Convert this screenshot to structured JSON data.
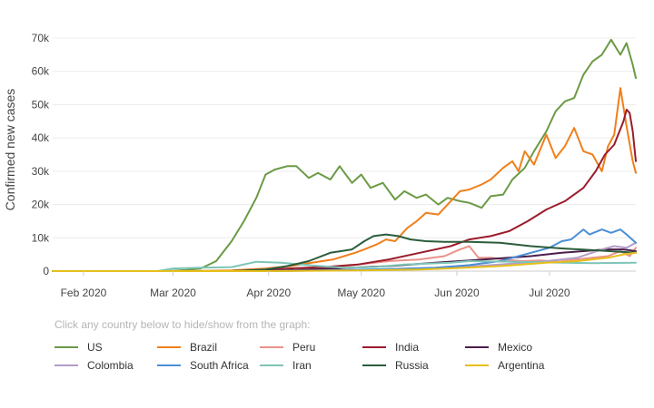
{
  "hint_text": "Click any country below to hide/show from the graph:",
  "chart_data": {
    "type": "line",
    "title": "",
    "ylabel": "Confirmed new cases",
    "xlabel": "",
    "ylim": [
      0,
      70000
    ],
    "yticks": [
      0,
      10000,
      20000,
      30000,
      40000,
      50000,
      60000,
      70000
    ],
    "ytick_labels": [
      "0",
      "10k",
      "20k",
      "30k",
      "40k",
      "50k",
      "60k",
      "70k"
    ],
    "xlim": [
      "2020-01-22",
      "2020-07-29"
    ],
    "xticks": [
      "2020-02-01",
      "2020-03-01",
      "2020-04-01",
      "2020-05-01",
      "2020-06-01",
      "2020-07-01"
    ],
    "xtick_labels": [
      "Feb 2020",
      "Mar 2020",
      "Apr 2020",
      "May 2020",
      "Jun 2020",
      "Jul 2020"
    ],
    "grid": "horizontal",
    "legend_position": "bottom",
    "series": [
      {
        "name": "US",
        "color": "#6b9a45",
        "points": [
          [
            "2020-01-22",
            0
          ],
          [
            "2020-02-28",
            0
          ],
          [
            "2020-03-05",
            300
          ],
          [
            "2020-03-10",
            800
          ],
          [
            "2020-03-15",
            3000
          ],
          [
            "2020-03-20",
            9000
          ],
          [
            "2020-03-24",
            15000
          ],
          [
            "2020-03-28",
            22000
          ],
          [
            "2020-03-31",
            29000
          ],
          [
            "2020-04-03",
            30500
          ],
          [
            "2020-04-07",
            31500
          ],
          [
            "2020-04-10",
            31500
          ],
          [
            "2020-04-14",
            28000
          ],
          [
            "2020-04-17",
            29500
          ],
          [
            "2020-04-21",
            27500
          ],
          [
            "2020-04-24",
            31500
          ],
          [
            "2020-04-28",
            26500
          ],
          [
            "2020-05-01",
            29000
          ],
          [
            "2020-05-04",
            25000
          ],
          [
            "2020-05-08",
            26500
          ],
          [
            "2020-05-12",
            21500
          ],
          [
            "2020-05-15",
            24000
          ],
          [
            "2020-05-19",
            22000
          ],
          [
            "2020-05-22",
            23000
          ],
          [
            "2020-05-26",
            20000
          ],
          [
            "2020-05-29",
            22000
          ],
          [
            "2020-06-02",
            21000
          ],
          [
            "2020-06-05",
            20500
          ],
          [
            "2020-06-09",
            19000
          ],
          [
            "2020-06-12",
            22500
          ],
          [
            "2020-06-16",
            23000
          ],
          [
            "2020-06-19",
            27500
          ],
          [
            "2020-06-23",
            31000
          ],
          [
            "2020-06-26",
            36000
          ],
          [
            "2020-06-30",
            42000
          ],
          [
            "2020-07-03",
            48000
          ],
          [
            "2020-07-06",
            51000
          ],
          [
            "2020-07-09",
            52000
          ],
          [
            "2020-07-12",
            59000
          ],
          [
            "2020-07-15",
            63000
          ],
          [
            "2020-07-18",
            65000
          ],
          [
            "2020-07-21",
            69500
          ],
          [
            "2020-07-24",
            65000
          ],
          [
            "2020-07-26",
            68500
          ],
          [
            "2020-07-28",
            62000
          ],
          [
            "2020-07-29",
            58000
          ]
        ]
      },
      {
        "name": "Brazil",
        "color": "#f07f1b",
        "points": [
          [
            "2020-01-22",
            0
          ],
          [
            "2020-03-05",
            0
          ],
          [
            "2020-03-20",
            200
          ],
          [
            "2020-03-31",
            800
          ],
          [
            "2020-04-08",
            1500
          ],
          [
            "2020-04-15",
            2500
          ],
          [
            "2020-04-22",
            3500
          ],
          [
            "2020-04-29",
            5500
          ],
          [
            "2020-05-02",
            6500
          ],
          [
            "2020-05-06",
            8000
          ],
          [
            "2020-05-09",
            9500
          ],
          [
            "2020-05-12",
            9000
          ],
          [
            "2020-05-16",
            13000
          ],
          [
            "2020-05-19",
            15000
          ],
          [
            "2020-05-22",
            17500
          ],
          [
            "2020-05-26",
            17000
          ],
          [
            "2020-05-29",
            20000
          ],
          [
            "2020-06-02",
            24000
          ],
          [
            "2020-06-05",
            24500
          ],
          [
            "2020-06-09",
            26000
          ],
          [
            "2020-06-12",
            27500
          ],
          [
            "2020-06-16",
            31000
          ],
          [
            "2020-06-19",
            33000
          ],
          [
            "2020-06-21",
            30000
          ],
          [
            "2020-06-23",
            36000
          ],
          [
            "2020-06-26",
            32000
          ],
          [
            "2020-06-30",
            41000
          ],
          [
            "2020-07-03",
            34000
          ],
          [
            "2020-07-06",
            37500
          ],
          [
            "2020-07-09",
            43000
          ],
          [
            "2020-07-12",
            36000
          ],
          [
            "2020-07-15",
            35000
          ],
          [
            "2020-07-18",
            30000
          ],
          [
            "2020-07-20",
            37500
          ],
          [
            "2020-07-22",
            41000
          ],
          [
            "2020-07-24",
            55000
          ],
          [
            "2020-07-26",
            43500
          ],
          [
            "2020-07-28",
            33000
          ],
          [
            "2020-07-29",
            29500
          ]
        ]
      },
      {
        "name": "Peru",
        "color": "#e8938a",
        "points": [
          [
            "2020-01-22",
            0
          ],
          [
            "2020-03-31",
            0
          ],
          [
            "2020-04-10",
            300
          ],
          [
            "2020-04-20",
            800
          ],
          [
            "2020-04-30",
            2000
          ],
          [
            "2020-05-10",
            3000
          ],
          [
            "2020-05-20",
            3500
          ],
          [
            "2020-05-28",
            4500
          ],
          [
            "2020-06-02",
            6500
          ],
          [
            "2020-06-05",
            7500
          ],
          [
            "2020-06-08",
            4000
          ],
          [
            "2020-06-12",
            4000
          ],
          [
            "2020-06-16",
            3500
          ],
          [
            "2020-06-22",
            3000
          ],
          [
            "2020-06-28",
            3200
          ],
          [
            "2020-07-04",
            2800
          ],
          [
            "2020-07-10",
            3500
          ],
          [
            "2020-07-15",
            4000
          ],
          [
            "2020-07-20",
            4500
          ],
          [
            "2020-07-24",
            6000
          ],
          [
            "2020-07-27",
            4500
          ],
          [
            "2020-07-29",
            7000
          ]
        ]
      },
      {
        "name": "India",
        "color": "#9b1c2b",
        "points": [
          [
            "2020-01-22",
            0
          ],
          [
            "2020-03-20",
            0
          ],
          [
            "2020-03-31",
            400
          ],
          [
            "2020-04-10",
            900
          ],
          [
            "2020-04-20",
            1300
          ],
          [
            "2020-04-30",
            2000
          ],
          [
            "2020-05-10",
            3500
          ],
          [
            "2020-05-20",
            5500
          ],
          [
            "2020-05-30",
            7500
          ],
          [
            "2020-06-05",
            9500
          ],
          [
            "2020-06-12",
            10500
          ],
          [
            "2020-06-18",
            12000
          ],
          [
            "2020-06-24",
            15000
          ],
          [
            "2020-06-30",
            18500
          ],
          [
            "2020-07-06",
            21000
          ],
          [
            "2020-07-12",
            25000
          ],
          [
            "2020-07-16",
            30000
          ],
          [
            "2020-07-19",
            35000
          ],
          [
            "2020-07-22",
            38000
          ],
          [
            "2020-07-25",
            45000
          ],
          [
            "2020-07-26",
            48500
          ],
          [
            "2020-07-27",
            47500
          ],
          [
            "2020-07-28",
            42000
          ],
          [
            "2020-07-29",
            33000
          ]
        ]
      },
      {
        "name": "Mexico",
        "color": "#4b1e4b",
        "points": [
          [
            "2020-01-22",
            0
          ],
          [
            "2020-03-25",
            0
          ],
          [
            "2020-04-10",
            300
          ],
          [
            "2020-04-25",
            900
          ],
          [
            "2020-05-10",
            1500
          ],
          [
            "2020-05-25",
            2500
          ],
          [
            "2020-06-10",
            3500
          ],
          [
            "2020-06-25",
            4500
          ],
          [
            "2020-07-05",
            5500
          ],
          [
            "2020-07-12",
            6000
          ],
          [
            "2020-07-19",
            6500
          ],
          [
            "2020-07-25",
            6500
          ],
          [
            "2020-07-29",
            6000
          ]
        ]
      },
      {
        "name": "Colombia",
        "color": "#b49cc8",
        "points": [
          [
            "2020-01-22",
            0
          ],
          [
            "2020-04-01",
            0
          ],
          [
            "2020-04-20",
            200
          ],
          [
            "2020-05-10",
            500
          ],
          [
            "2020-05-30",
            1000
          ],
          [
            "2020-06-15",
            2000
          ],
          [
            "2020-06-30",
            3000
          ],
          [
            "2020-07-10",
            4000
          ],
          [
            "2020-07-18",
            6500
          ],
          [
            "2020-07-22",
            7500
          ],
          [
            "2020-07-26",
            7000
          ],
          [
            "2020-07-29",
            8500
          ]
        ]
      },
      {
        "name": "South Africa",
        "color": "#4a8fd6",
        "points": [
          [
            "2020-01-22",
            0
          ],
          [
            "2020-03-31",
            0
          ],
          [
            "2020-04-20",
            200
          ],
          [
            "2020-05-10",
            600
          ],
          [
            "2020-05-25",
            1000
          ],
          [
            "2020-06-05",
            1800
          ],
          [
            "2020-06-15",
            3000
          ],
          [
            "2020-06-25",
            5500
          ],
          [
            "2020-07-01",
            7000
          ],
          [
            "2020-07-05",
            9000
          ],
          [
            "2020-07-08",
            9500
          ],
          [
            "2020-07-12",
            12500
          ],
          [
            "2020-07-14",
            11000
          ],
          [
            "2020-07-18",
            12500
          ],
          [
            "2020-07-21",
            11500
          ],
          [
            "2020-07-24",
            12500
          ],
          [
            "2020-07-26",
            11000
          ],
          [
            "2020-07-29",
            8500
          ]
        ]
      },
      {
        "name": "Iran",
        "color": "#7dc5b7",
        "points": [
          [
            "2020-01-22",
            0
          ],
          [
            "2020-02-25",
            0
          ],
          [
            "2020-03-01",
            800
          ],
          [
            "2020-03-10",
            1000
          ],
          [
            "2020-03-20",
            1200
          ],
          [
            "2020-03-28",
            2800
          ],
          [
            "2020-04-05",
            2500
          ],
          [
            "2020-04-15",
            1700
          ],
          [
            "2020-04-25",
            1000
          ],
          [
            "2020-05-05",
            1200
          ],
          [
            "2020-05-15",
            2000
          ],
          [
            "2020-05-30",
            2500
          ],
          [
            "2020-06-05",
            3000
          ],
          [
            "2020-06-20",
            2800
          ],
          [
            "2020-07-01",
            2600
          ],
          [
            "2020-07-15",
            2400
          ],
          [
            "2020-07-29",
            2500
          ]
        ]
      },
      {
        "name": "Russia",
        "color": "#2b5d3b",
        "points": [
          [
            "2020-01-22",
            0
          ],
          [
            "2020-03-20",
            0
          ],
          [
            "2020-03-31",
            500
          ],
          [
            "2020-04-07",
            1500
          ],
          [
            "2020-04-14",
            3000
          ],
          [
            "2020-04-21",
            5500
          ],
          [
            "2020-04-28",
            6500
          ],
          [
            "2020-05-02",
            9000
          ],
          [
            "2020-05-05",
            10500
          ],
          [
            "2020-05-09",
            11000
          ],
          [
            "2020-05-13",
            10500
          ],
          [
            "2020-05-17",
            9500
          ],
          [
            "2020-05-22",
            9000
          ],
          [
            "2020-05-28",
            8800
          ],
          [
            "2020-06-05",
            8800
          ],
          [
            "2020-06-15",
            8500
          ],
          [
            "2020-06-25",
            7500
          ],
          [
            "2020-07-05",
            6800
          ],
          [
            "2020-07-15",
            6300
          ],
          [
            "2020-07-29",
            5500
          ]
        ]
      },
      {
        "name": "Argentina",
        "color": "#e6bf1a",
        "points": [
          [
            "2020-01-22",
            0
          ],
          [
            "2020-04-01",
            0
          ],
          [
            "2020-05-01",
            200
          ],
          [
            "2020-05-20",
            500
          ],
          [
            "2020-06-01",
            900
          ],
          [
            "2020-06-15",
            1500
          ],
          [
            "2020-06-30",
            2500
          ],
          [
            "2020-07-10",
            3000
          ],
          [
            "2020-07-20",
            4000
          ],
          [
            "2020-07-25",
            5000
          ],
          [
            "2020-07-29",
            5500
          ]
        ]
      }
    ]
  }
}
